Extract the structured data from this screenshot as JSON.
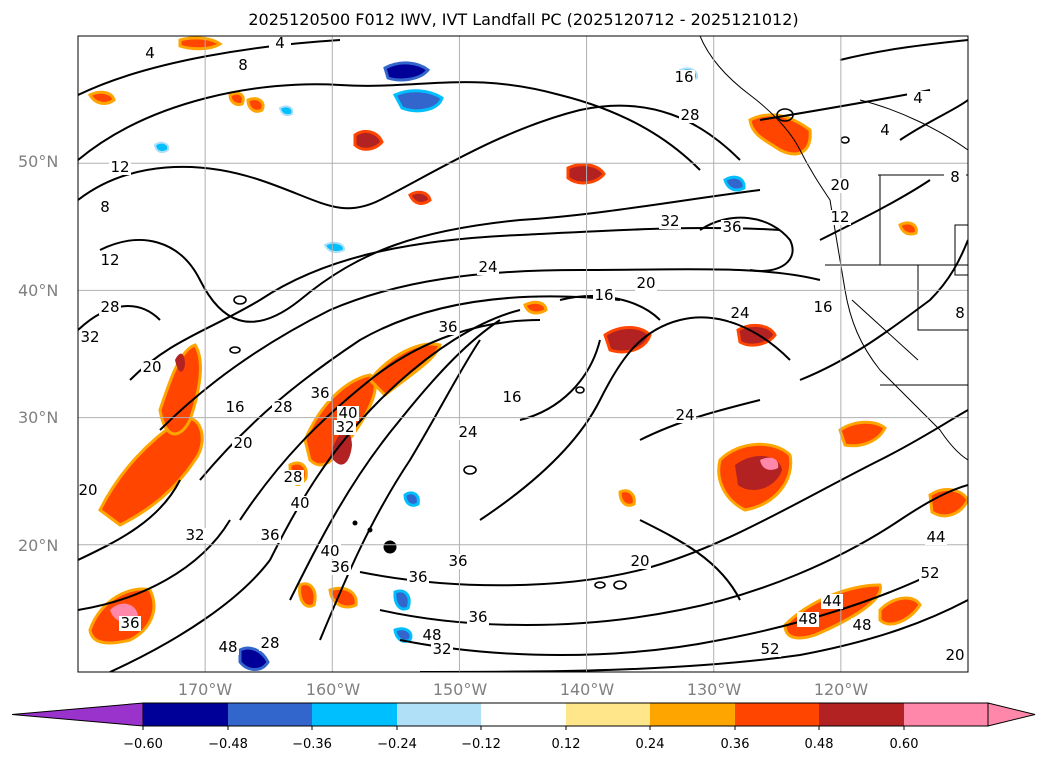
{
  "title": "2025120500 F012 IWV, IVT Landfall PC (2025120712 - 2025121012)",
  "map": {
    "lat_labels": [
      "50°N",
      "40°N",
      "30°N",
      "20°N"
    ],
    "lon_labels": [
      "170°W",
      "160°W",
      "150°W",
      "140°W",
      "130°W",
      "120°W"
    ],
    "grid_lats": [
      50,
      40,
      30,
      20
    ],
    "grid_lons": [
      -170,
      -160,
      -150,
      -140,
      -130,
      -120
    ],
    "lon_range": [
      -180,
      -110
    ],
    "lat_range": [
      10,
      60
    ],
    "gridlines": true,
    "iwv_contour_labels": [
      "4",
      "4",
      "8",
      "12",
      "8",
      "12",
      "28",
      "32",
      "20",
      "16",
      "20",
      "28",
      "36",
      "40",
      "36",
      "24",
      "24",
      "16",
      "36",
      "16",
      "20",
      "32",
      "36",
      "24",
      "24",
      "20",
      "36",
      "36",
      "48",
      "32",
      "36",
      "28",
      "32",
      "36",
      "48",
      "40",
      "44",
      "48",
      "48",
      "52",
      "44",
      "52",
      "20",
      "12",
      "16",
      "8",
      "4",
      "4",
      "20",
      "8",
      "16",
      "28",
      "20",
      "36",
      "40",
      "28",
      "32"
    ]
  },
  "colorbar": {
    "ticks": [
      "−0.60",
      "−0.48",
      "−0.36",
      "−0.24",
      "−0.12",
      "0.12",
      "0.24",
      "0.36",
      "0.48",
      "0.60"
    ],
    "colors": [
      "#9933cc",
      "#000099",
      "#3366cc",
      "#00bfff",
      "#b0e0f8",
      "#ffffff",
      "#ffe68a",
      "#ffa500",
      "#ff4500",
      "#b22222",
      "#ff88aa",
      "#ff88aa"
    ],
    "extend": "both"
  }
}
